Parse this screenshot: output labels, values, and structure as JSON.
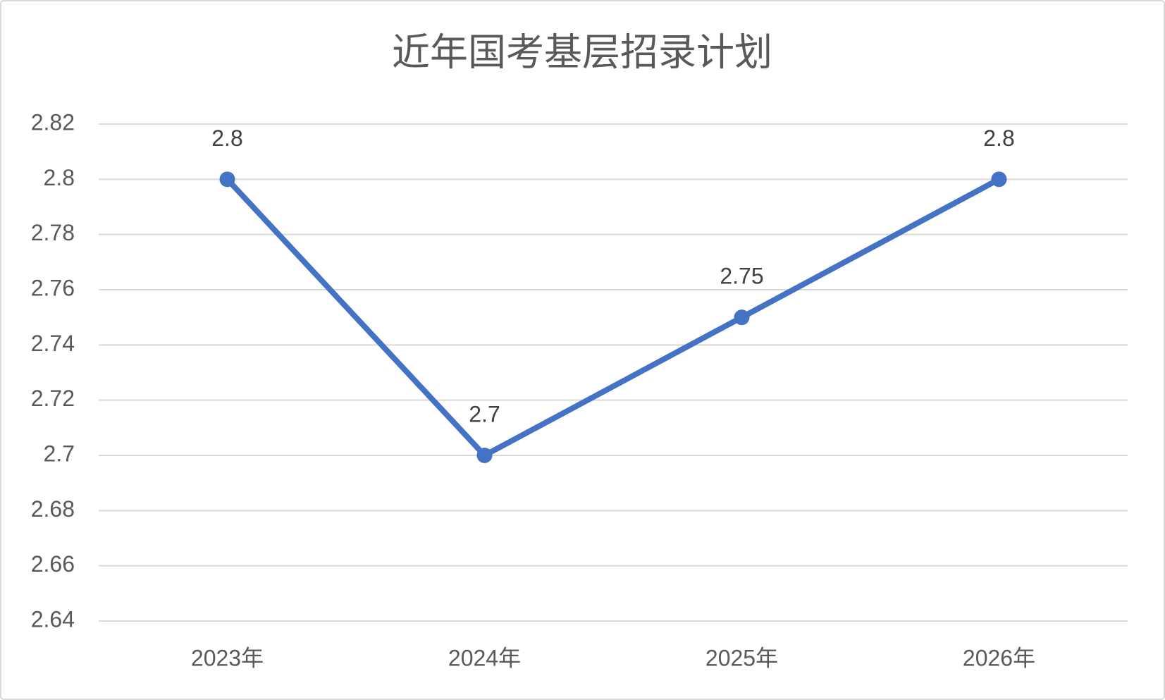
{
  "chart_data": {
    "type": "line",
    "title": "近年国考基层招录计划",
    "categories": [
      "2023年",
      "2024年",
      "2025年",
      "2026年"
    ],
    "values": [
      2.8,
      2.7,
      2.75,
      2.8
    ],
    "color": "#4472c4",
    "ylim": [
      2.64,
      2.82
    ],
    "yticks": [
      2.64,
      2.66,
      2.68,
      2.7,
      2.72,
      2.74,
      2.76,
      2.78,
      2.8,
      2.82
    ],
    "grid": true
  }
}
